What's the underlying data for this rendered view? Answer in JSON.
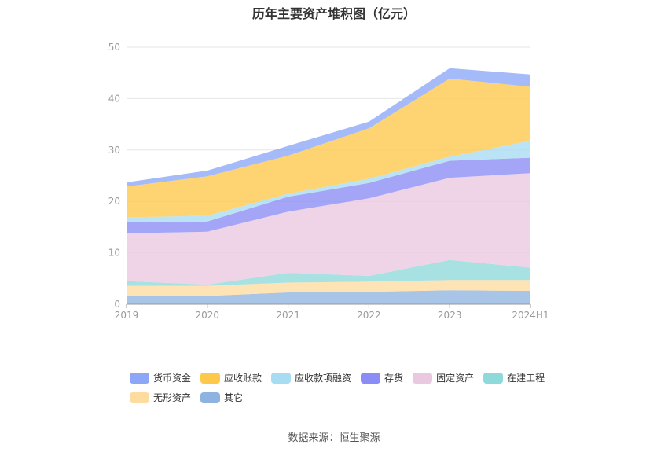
{
  "chart_data": {
    "type": "area",
    "stacked": true,
    "title": "历年主要资产堆积图（亿元）",
    "categories": [
      "2019",
      "2020",
      "2021",
      "2022",
      "2023",
      "2024H1"
    ],
    "ylim": [
      0,
      50
    ],
    "yticks": [
      0,
      10,
      20,
      30,
      40,
      50
    ],
    "grid": true,
    "legend_position": "bottom",
    "series": [
      {
        "name": "其它",
        "color": "#8fb3e0",
        "values": [
          1.6,
          1.6,
          2.3,
          2.4,
          2.7,
          2.6
        ]
      },
      {
        "name": "无形资产",
        "color": "#fedb9f",
        "values": [
          2.0,
          2.0,
          1.9,
          2.0,
          2.0,
          2.1
        ]
      },
      {
        "name": "在建工程",
        "color": "#8ed9d9",
        "values": [
          0.9,
          0.2,
          1.9,
          1.1,
          3.9,
          2.4
        ]
      },
      {
        "name": "固定资产",
        "color": "#eac8e0",
        "values": [
          9.3,
          10.3,
          11.9,
          15.1,
          16.0,
          18.4
        ]
      },
      {
        "name": "存货",
        "color": "#8b8cf5",
        "values": [
          2.1,
          2.0,
          2.9,
          3.0,
          3.3,
          3.0
        ]
      },
      {
        "name": "应收款项融资",
        "color": "#a7dcf2",
        "values": [
          1.0,
          1.1,
          0.6,
          0.8,
          0.8,
          3.3
        ]
      },
      {
        "name": "应收账款",
        "color": "#fec84b",
        "values": [
          6.0,
          7.7,
          7.4,
          9.8,
          15.2,
          10.5
        ]
      },
      {
        "name": "货币资金",
        "color": "#8ca7f7",
        "values": [
          0.8,
          1.1,
          1.9,
          1.3,
          2.0,
          2.4
        ]
      }
    ],
    "legend_order": [
      "货币资金",
      "应收账款",
      "应收款项融资",
      "存货",
      "固定资产",
      "在建工程",
      "无形资产",
      "其它"
    ]
  },
  "source_text": "数据来源：恒生聚源"
}
